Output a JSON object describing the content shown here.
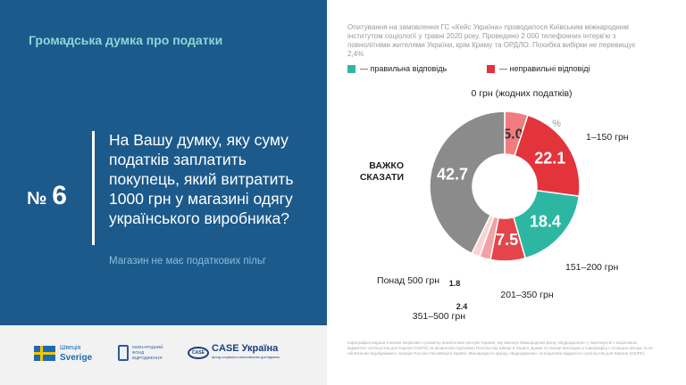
{
  "header": {
    "section_title": "Громадська думка про податки"
  },
  "question": {
    "symbol": "№",
    "number": "6",
    "text": "На Вашу думку, яку суму податків заплатить покупець, який витратить 1000 грн у магазині одягу українського виробника?",
    "note": "Магазин не має податкових пільг"
  },
  "survey_info": "Опитування на замовлення ГС «Кейс Україна» проводилося Київським міжнародним інститутом соціології у травні 2020 року. Проведено 2 000 телефонних інтерв'ю з повнолітніми жителями України, крім Криму та ОРДЛО. Похибка вибірки не перевищує 2,4%",
  "legend": {
    "correct": "— правильна відповідь",
    "incorrect": "— неправильні відповіді"
  },
  "colors": {
    "correct": "#2db7a3",
    "incorrect": "#e3333b",
    "grey": "#8b8b8b",
    "panel": "#1c5a8c",
    "accent_text": "#8fd6d6"
  },
  "chart_data": {
    "type": "pie",
    "unit": "%",
    "slices": [
      {
        "label": "0 грн (жодних податків)",
        "value": 5.0,
        "value_text": "5.0",
        "kind": "incorrect",
        "color": "#f07c7e"
      },
      {
        "label": "1–150 грн",
        "value": 22.1,
        "value_text": "22.1",
        "kind": "incorrect",
        "color": "#e3333b"
      },
      {
        "label": "151–200 грн",
        "value": 18.4,
        "value_text": "18.4",
        "kind": "correct",
        "color": "#2db7a3"
      },
      {
        "label": "201–350 грн",
        "value": 7.5,
        "value_text": "7.5",
        "kind": "incorrect",
        "color": "#e4454d"
      },
      {
        "label": "351–500 грн",
        "value": 2.4,
        "value_text": "2.4",
        "kind": "incorrect",
        "color": "#f0a2a4"
      },
      {
        "label": "Понад 500 грн",
        "value": 1.8,
        "value_text": "1.8",
        "kind": "incorrect",
        "color": "#f7d3d4"
      },
      {
        "label": "ВАЖКО СКАЗАТИ",
        "value": 42.7,
        "value_text": "42.7",
        "kind": "other",
        "color": "#8b8b8b"
      }
    ]
  },
  "logos": {
    "sweden_small": "Швеція",
    "sweden_big": "Sverige",
    "fond": "МІЖНАРОДНИЙ ФОНД ВІДРОДЖЕННЯ",
    "case_mark": "CASE",
    "case_big": "CASE Україна",
    "case_small": "фонд соціально-економічних досліджень"
  },
  "credits": "Інфографіка видана в межах Ініціативи з розвитку аналітичних центрів України, яку виконує Міжнародний фонд «Відродження» у партнерстві з Ініціативою відкритого суспільства для Європи (OSIFE) за фінансової підтримки Посольства Швеції в Україні. Думки та позиції викладені у інфографіці є позицією автора та не обов'язково відображають позицію Посольства Швеції в Україні, Міжнародного фонду «Відродження» та Ініціативи відкритого суспільства для Європи (OSIFE)."
}
